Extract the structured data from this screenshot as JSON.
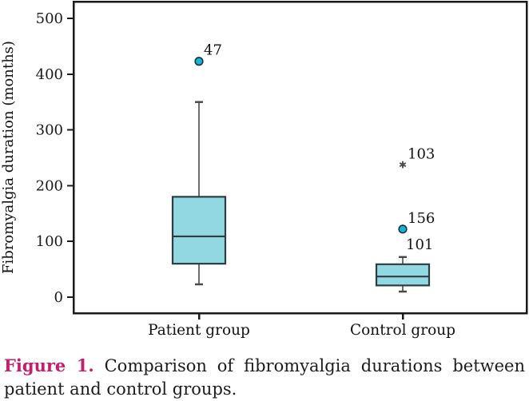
{
  "figure": {
    "caption_label": "Figure 1.",
    "caption_text": "Comparison of fibromyalgia durations between patient and control groups.",
    "caption_label_color": "#c51f6b"
  },
  "chart_data": {
    "type": "boxplot",
    "title": "",
    "xlabel": "",
    "ylabel": "Fibromyalgia duration (months)",
    "ylim": [
      0,
      500
    ],
    "yticks": [
      0,
      100,
      200,
      300,
      400,
      500
    ],
    "grid": false,
    "legend": false,
    "categories": [
      "Patient group",
      "Control group"
    ],
    "series": [
      {
        "category": "Patient group",
        "whisker_low": 23,
        "q1": 60,
        "median": 109,
        "q3": 180,
        "whisker_high": 350,
        "outliers": [
          {
            "value": 423,
            "marker": "circle",
            "label_above": "47"
          }
        ]
      },
      {
        "category": "Control group",
        "whisker_low": 10,
        "q1": 21,
        "median": 37,
        "q3": 59,
        "whisker_high": 72,
        "outliers": [
          {
            "value": 237,
            "marker": "asterisk",
            "label_above": "103"
          },
          {
            "value": 122,
            "marker": "circle",
            "label_above": "156",
            "label_below": "101"
          }
        ]
      }
    ],
    "colors": {
      "box_fill": "#91d8e2",
      "box_stroke": "#2e3d42",
      "outlier_fill": "#16b3d2",
      "outlier_stroke": "#14333d",
      "asterisk_color": "#4d4d4d",
      "axis_color": "#1a1a1a",
      "whisker_color": "#4a4a4a"
    }
  }
}
